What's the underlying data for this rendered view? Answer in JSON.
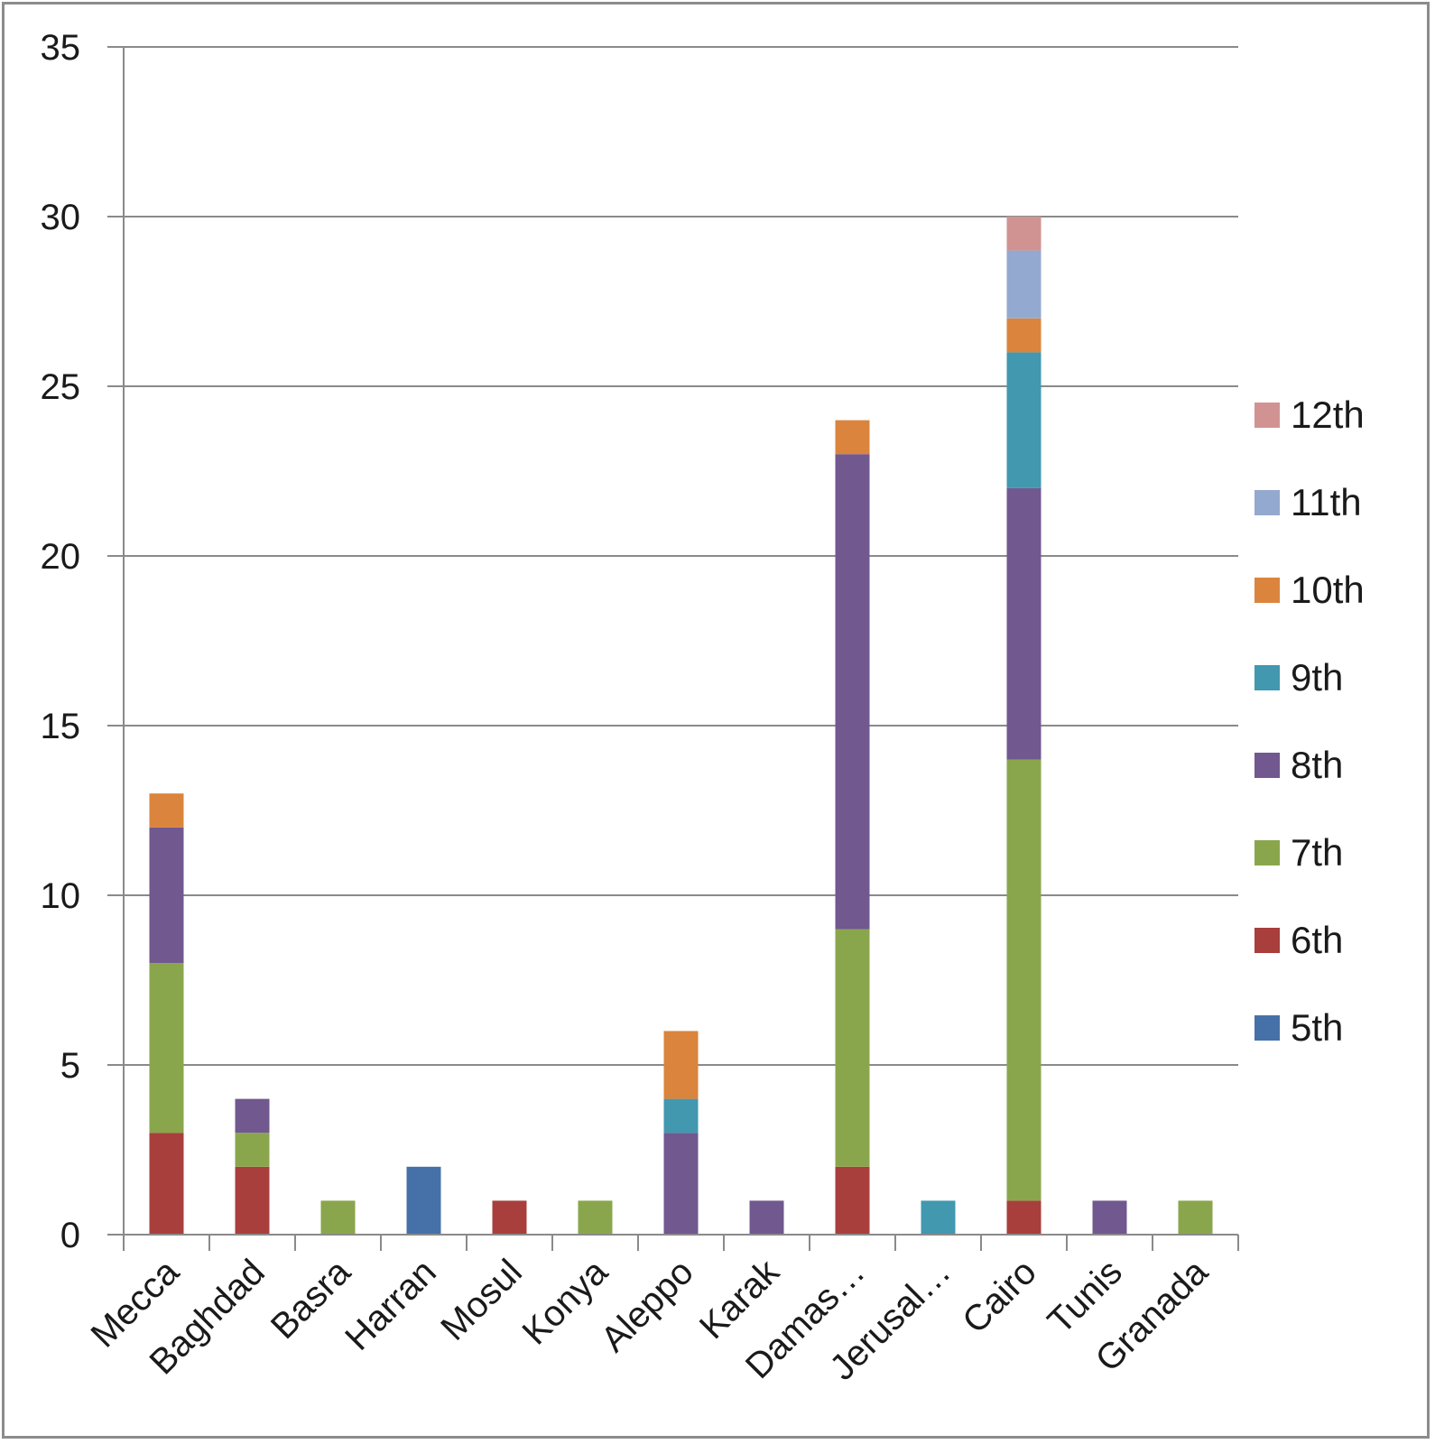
{
  "chart_data": {
    "type": "bar",
    "stacked": true,
    "title": "",
    "xlabel": "",
    "ylabel": "",
    "ylim": [
      0,
      35
    ],
    "yticks": [
      0,
      5,
      10,
      15,
      20,
      25,
      30,
      35
    ],
    "grid": true,
    "legend_position": "right",
    "categories": [
      "Mecca",
      "Baghdad",
      "Basra",
      "Harran",
      "Mosul",
      "Konya",
      "Aleppo",
      "Karak",
      "Damas…",
      "Jerusal…",
      "Cairo",
      "Tunis",
      "Granada"
    ],
    "series": [
      {
        "name": "5th",
        "color": "#4571a8",
        "values": [
          0,
          0,
          0,
          2,
          0,
          0,
          0,
          0,
          0,
          0,
          0,
          0,
          0
        ]
      },
      {
        "name": "6th",
        "color": "#a83f3d",
        "values": [
          3,
          2,
          0,
          0,
          1,
          0,
          0,
          0,
          2,
          0,
          1,
          0,
          0
        ]
      },
      {
        "name": "7th",
        "color": "#8aa64c",
        "values": [
          5,
          1,
          1,
          0,
          0,
          1,
          0,
          0,
          7,
          0,
          13,
          0,
          1
        ]
      },
      {
        "name": "8th",
        "color": "#71588f",
        "values": [
          4,
          1,
          0,
          0,
          0,
          0,
          3,
          1,
          14,
          0,
          8,
          1,
          0
        ]
      },
      {
        "name": "9th",
        "color": "#4198af",
        "values": [
          0,
          0,
          0,
          0,
          0,
          0,
          1,
          0,
          0,
          1,
          4,
          0,
          0
        ]
      },
      {
        "name": "10th",
        "color": "#db843d",
        "values": [
          1,
          0,
          0,
          0,
          0,
          0,
          2,
          0,
          1,
          0,
          1,
          0,
          0
        ]
      },
      {
        "name": "11th",
        "color": "#93a9cf",
        "values": [
          0,
          0,
          0,
          0,
          0,
          0,
          0,
          0,
          0,
          0,
          2,
          0,
          0
        ]
      },
      {
        "name": "12th",
        "color": "#d19392",
        "values": [
          0,
          0,
          0,
          0,
          0,
          0,
          0,
          0,
          0,
          0,
          1,
          0,
          0
        ]
      }
    ]
  }
}
